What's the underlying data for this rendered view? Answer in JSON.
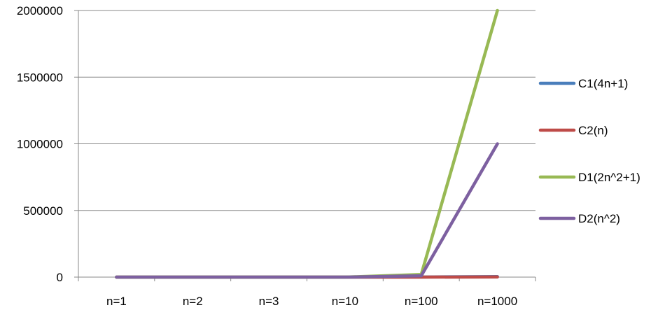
{
  "chart_data": {
    "type": "line",
    "categories": [
      "n=1",
      "n=2",
      "n=3",
      "n=10",
      "n=100",
      "n=1000"
    ],
    "ylim": [
      0,
      2000000
    ],
    "yticks": [
      0,
      500000,
      1000000,
      1500000,
      2000000
    ],
    "ytick_labels": [
      "0",
      "500000",
      "1000000",
      "1500000",
      "2000000"
    ],
    "grid": true,
    "legend_position": "right",
    "series": [
      {
        "name": "C1(4n+1)",
        "color": "#4a7ebb",
        "values": [
          5,
          9,
          13,
          41,
          401,
          4001
        ]
      },
      {
        "name": "C2(n)",
        "color": "#be4b48",
        "values": [
          1,
          2,
          3,
          10,
          100,
          1000
        ]
      },
      {
        "name": "D1(2n^2+1)",
        "color": "#98b954",
        "values": [
          3,
          9,
          19,
          201,
          20001,
          2000001
        ]
      },
      {
        "name": "D2(n^2)",
        "color": "#7d60a0",
        "values": [
          1,
          4,
          9,
          100,
          10000,
          1000000
        ]
      }
    ]
  }
}
